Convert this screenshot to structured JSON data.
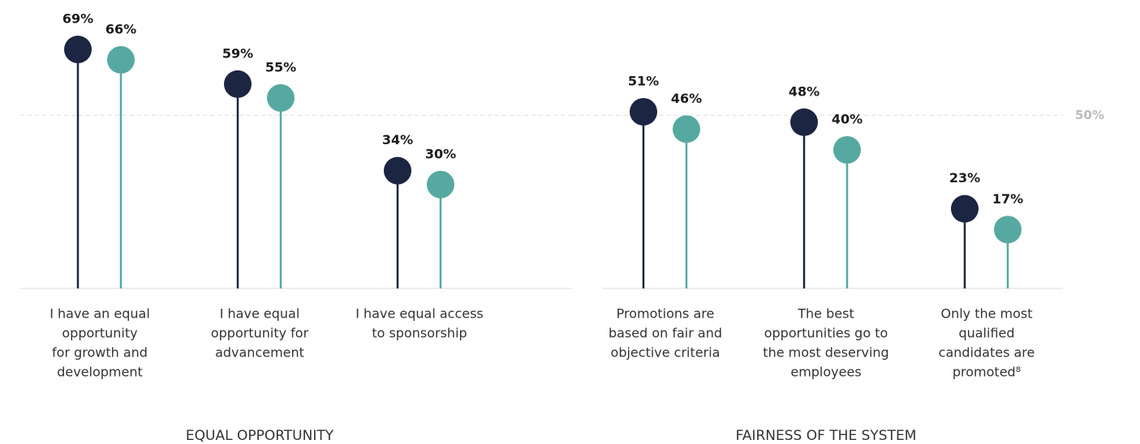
{
  "chart_data": [
    {
      "type": "lollipop",
      "title": "EQUAL OPPORTUNITY",
      "categories": [
        [
          "I have an equal",
          "opportunity",
          "for growth and",
          "development"
        ],
        [
          "I have equal",
          "opportunity for",
          "advancement"
        ],
        [
          "I have equal access",
          "to sponsorship"
        ]
      ],
      "series": [
        {
          "color": "#1c2541",
          "values": [
            69,
            59,
            34
          ],
          "value_labels": [
            "69%",
            "59%",
            "34%"
          ]
        },
        {
          "color": "#56a9a0",
          "values": [
            66,
            55,
            30
          ],
          "value_labels": [
            "66%",
            "55%",
            "30%"
          ]
        }
      ],
      "ylim": [
        0,
        80
      ],
      "yticks": [
        50
      ],
      "grid": true
    },
    {
      "type": "lollipop",
      "title": "FAIRNESS OF THE SYSTEM",
      "categories": [
        [
          "Promotions are",
          "based on fair and",
          "objective criteria"
        ],
        [
          "The best",
          "opportunities go to",
          "the most deserving",
          "employees"
        ],
        [
          "Only the most",
          "qualified",
          "candidates are",
          "promoted⁸"
        ]
      ],
      "series": [
        {
          "color": "#1c2541",
          "values": [
            51,
            48,
            23
          ],
          "value_labels": [
            "51%",
            "48%",
            "23%"
          ]
        },
        {
          "color": "#56a9a0",
          "values": [
            46,
            40,
            17
          ],
          "value_labels": [
            "46%",
            "40%",
            "17%"
          ]
        }
      ],
      "ylim": [
        0,
        80
      ],
      "yticks": [
        {
          "value": 50,
          "label": "50%"
        }
      ],
      "grid": true
    }
  ]
}
